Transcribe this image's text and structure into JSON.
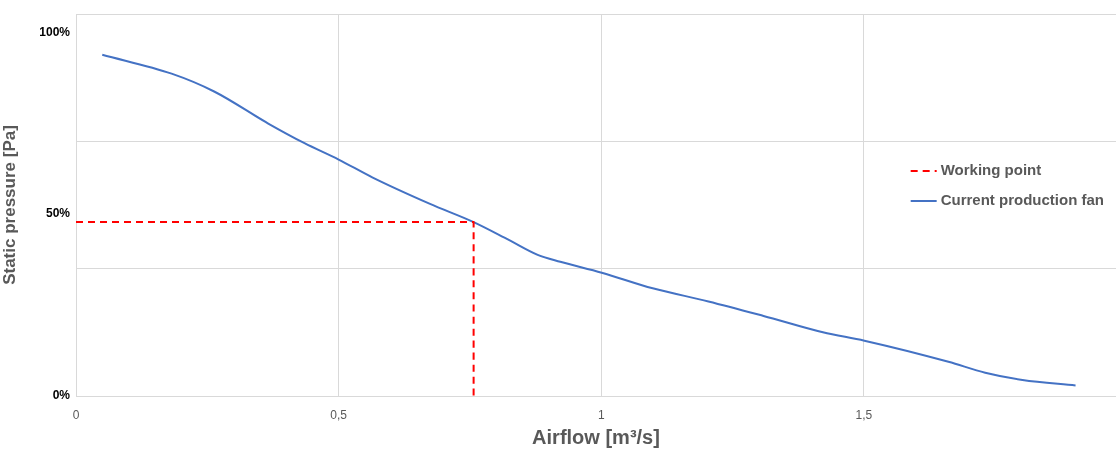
{
  "chart_data": {
    "type": "line",
    "xlabel": "Airflow [m³/s]",
    "ylabel": "Static pressure [Pa]",
    "xlim": [
      0,
      1.98
    ],
    "xticks": [
      0,
      {
        "value": 0.5,
        "label": "0,5"
      },
      1,
      {
        "value": 1.5,
        "label": "1,5"
      }
    ],
    "ylim": [
      0,
      105
    ],
    "yticks": [
      {
        "value": 0,
        "label": "0%"
      },
      {
        "value": 35,
        "label": null
      },
      {
        "value": 50,
        "label": "50%"
      },
      {
        "value": 70,
        "label": null
      },
      {
        "value": 100,
        "label": "100%"
      },
      {
        "value": 105,
        "label": null
      }
    ],
    "grid": true,
    "legend": "right",
    "marker": "none",
    "series": [
      {
        "name": "Working point",
        "color": "#ff0000",
        "line_style": "dashed",
        "x": [
          0,
          0.757,
          0.757
        ],
        "values": [
          47.8,
          47.8,
          0
        ]
      },
      {
        "name": "Current production fan",
        "color": "#4472c4",
        "line_style": "solid",
        "x": [
          0.05,
          0.182,
          0.263,
          0.366,
          0.435,
          0.5,
          0.564,
          0.674,
          0.757,
          0.824,
          0.879,
          0.922,
          1.001,
          1.098,
          1.204,
          1.309,
          1.422,
          1.501,
          1.661,
          1.731,
          1.802,
          1.903
        ],
        "values": [
          93.8,
          88.6,
          83.7,
          74.9,
          69.5,
          65,
          60.1,
          52.8,
          47.8,
          42.9,
          38.8,
          36.9,
          33.9,
          29.6,
          26,
          22,
          17.5,
          15.2,
          9.4,
          6.4,
          4.4,
          2.9
        ]
      }
    ]
  }
}
